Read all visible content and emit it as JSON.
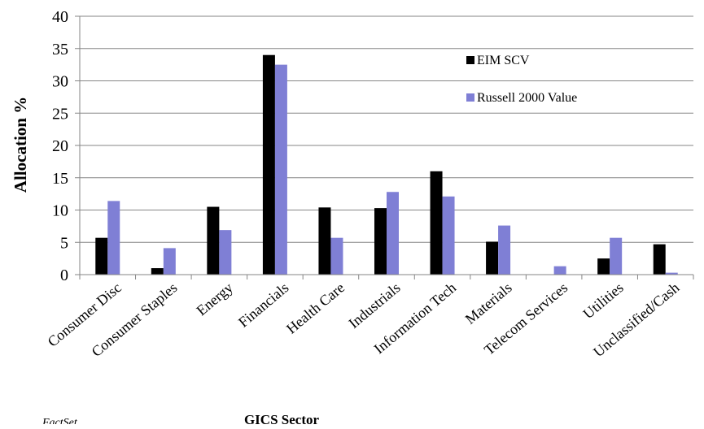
{
  "chart_data": {
    "type": "bar",
    "xlabel": "GICS Sector",
    "ylabel": "Allocation  %",
    "ylim": [
      0,
      40
    ],
    "yticks": [
      0,
      5,
      10,
      15,
      20,
      25,
      30,
      35,
      40
    ],
    "grid": true,
    "legend_position": "top-right",
    "categories": [
      "Consumer Disc",
      "Consumer Staples",
      "Energy",
      "Financials",
      "Health Care",
      "Industrials",
      "Information Tech",
      "Materials",
      "Telecom Services",
      "Utilities",
      "Unclassified/Cash"
    ],
    "series": [
      {
        "name": "EIM SCV",
        "color": "#000000",
        "values": [
          5.7,
          1.0,
          10.5,
          34.0,
          10.4,
          10.3,
          16.0,
          5.1,
          0.0,
          2.5,
          4.7
        ]
      },
      {
        "name": "Russell 2000 Value",
        "color": "#7f7fd5",
        "values": [
          11.4,
          4.1,
          6.9,
          32.5,
          5.7,
          12.8,
          12.1,
          7.6,
          1.3,
          5.7,
          0.3
        ]
      }
    ]
  },
  "source_note": "FactSet"
}
